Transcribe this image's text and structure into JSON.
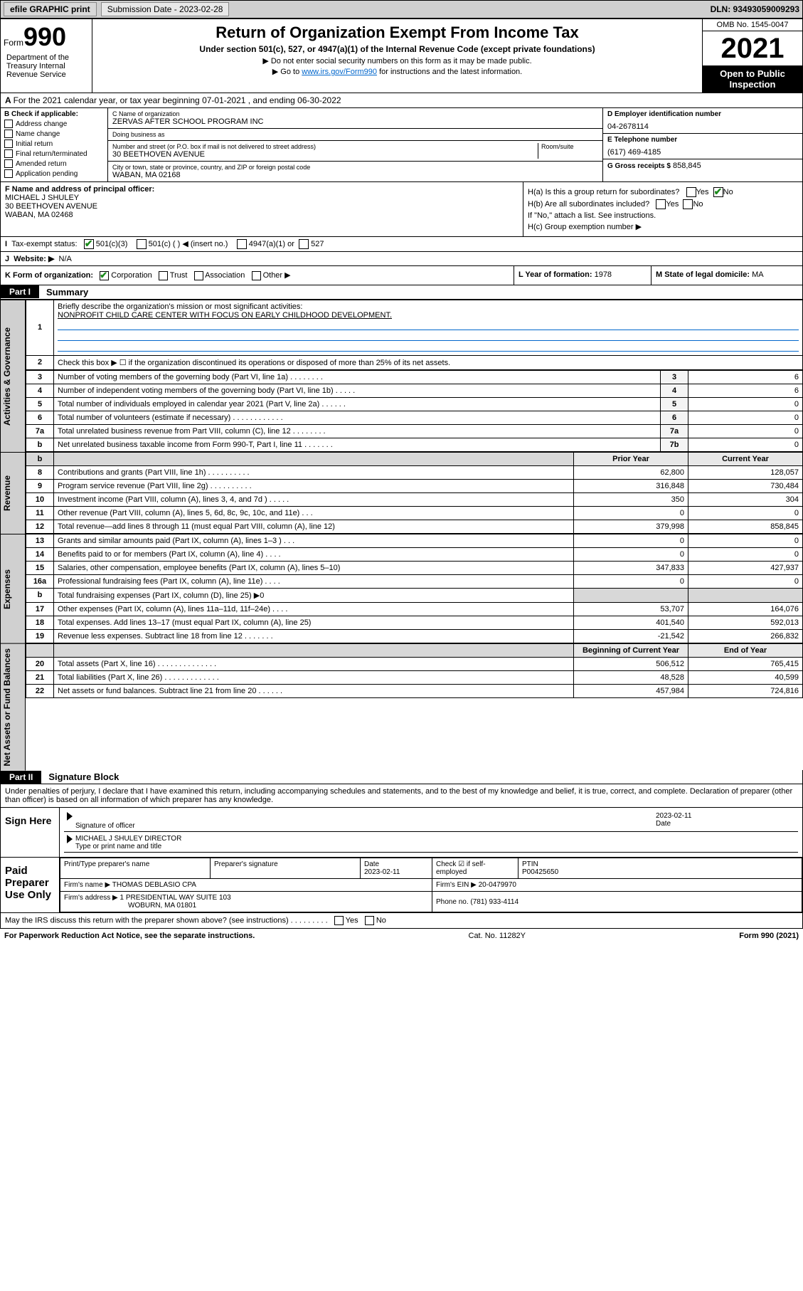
{
  "top": {
    "efile": "efile GRAPHIC print",
    "sub_label": "Submission Date - 2023-02-28",
    "dln": "DLN: 93493059009293"
  },
  "header": {
    "form_small": "Form",
    "form_big": "990",
    "title": "Return of Organization Exempt From Income Tax",
    "sub1": "Under section 501(c), 527, or 4947(a)(1) of the Internal Revenue Code (except private foundations)",
    "sub2": "▶ Do not enter social security numbers on this form as it may be made public.",
    "sub3_a": "▶ Go to ",
    "sub3_link": "www.irs.gov/Form990",
    "sub3_b": " for instructions and the latest information.",
    "omb": "OMB No. 1545-0047",
    "year": "2021",
    "open": "Open to Public Inspection",
    "dept": "Department of the Treasury Internal Revenue Service"
  },
  "lineA": "For the 2021 calendar year, or tax year beginning 07-01-2021    , and ending 06-30-2022",
  "colB": {
    "title": "B Check if applicable:",
    "addr": "Address change",
    "name": "Name change",
    "init": "Initial return",
    "term": "Final return/terminated",
    "amend": "Amended return",
    "app": "Application pending"
  },
  "colC": {
    "name_label": "C Name of organization",
    "name": "ZERVAS AFTER SCHOOL PROGRAM INC",
    "dba_label": "Doing business as",
    "dba": "",
    "street_label": "Number and street (or P.O. box if mail is not delivered to street address)",
    "room": "Room/suite",
    "street": "30 BEETHOVEN AVENUE",
    "city_label": "City or town, state or province, country, and ZIP or foreign postal code",
    "city": "WABAN, MA  02168"
  },
  "colD": {
    "ein_label": "D Employer identification number",
    "ein": "04-2678114",
    "phone_label": "E Telephone number",
    "phone": "(617) 469-4185",
    "gross_label": "G Gross receipts $",
    "gross": "858,845"
  },
  "rowF": {
    "label": "F  Name and address of principal officer:",
    "name": "MICHAEL J SHULEY",
    "street": "30 BEETHOVEN AVENUE",
    "city": "WABAN, MA  02468"
  },
  "rowH": {
    "ha": "H(a)  Is this a group return for subordinates?",
    "hb": "H(b)  Are all subordinates included?",
    "hb2": "If \"No,\" attach a list. See instructions.",
    "hc": "H(c)  Group exemption number ▶",
    "yes": "Yes",
    "no": "No"
  },
  "rowI": {
    "label": "Tax-exempt status:",
    "o1": "501(c)(3)",
    "o2": "501(c) (   ) ◀ (insert no.)",
    "o3": "4947(a)(1) or",
    "o4": "527"
  },
  "rowJ": {
    "label": "Website: ▶",
    "val": "N/A"
  },
  "rowK": {
    "label": "K Form of organization:",
    "corp": "Corporation",
    "trust": "Trust",
    "assoc": "Association",
    "other": "Other ▶",
    "year_label": "L Year of formation:",
    "year": "1978",
    "state_label": "M State of legal domicile:",
    "state": "MA"
  },
  "part1": {
    "hdr": "Part I",
    "title": "Summary",
    "l1_label": "Briefly describe the organization's mission or most significant activities:",
    "l1_val": "NONPROFIT CHILD CARE CENTER WITH FOCUS ON EARLY CHILDHOOD DEVELOPMENT.",
    "l2": "Check this box ▶ ☐  if the organization discontinued its operations or disposed of more than 25% of its net assets.",
    "rows37": [
      {
        "n": "3",
        "d": "Number of voting members of the governing body (Part VI, line 1a)   .    .    .    .    .    .    .    .",
        "ln": "3",
        "v": "6"
      },
      {
        "n": "4",
        "d": "Number of independent voting members of the governing body (Part VI, line 1b)   .    .    .    .    .",
        "ln": "4",
        "v": "6"
      },
      {
        "n": "5",
        "d": "Total number of individuals employed in calendar year 2021 (Part V, line 2a)   .    .    .    .    .    .",
        "ln": "5",
        "v": "0"
      },
      {
        "n": "6",
        "d": "Total number of volunteers (estimate if necessary)   .    .    .    .    .    .    .    .    .    .    .    .",
        "ln": "6",
        "v": "0"
      },
      {
        "n": "7a",
        "d": "Total unrelated business revenue from Part VIII, column (C), line 12   .    .    .    .    .    .    .    .",
        "ln": "7a",
        "v": "0"
      },
      {
        "n": "b",
        "d": "Net unrelated business taxable income from Form 990-T, Part I, line 11   .    .    .    .    .    .    .",
        "ln": "7b",
        "v": "0"
      }
    ],
    "hdr_prior": "Prior Year",
    "hdr_curr": "Current Year",
    "revenue": [
      {
        "n": "8",
        "d": "Contributions and grants (Part VIII, line 1h)   .    .    .    .    .    .    .    .    .    .",
        "p": "62,800",
        "c": "128,057"
      },
      {
        "n": "9",
        "d": "Program service revenue (Part VIII, line 2g)   .    .    .    .    .    .    .    .    .    .",
        "p": "316,848",
        "c": "730,484"
      },
      {
        "n": "10",
        "d": "Investment income (Part VIII, column (A), lines 3, 4, and 7d )   .    .    .    .    .",
        "p": "350",
        "c": "304"
      },
      {
        "n": "11",
        "d": "Other revenue (Part VIII, column (A), lines 5, 6d, 8c, 9c, 10c, and 11e)   .    .    .",
        "p": "0",
        "c": "0"
      },
      {
        "n": "12",
        "d": "Total revenue—add lines 8 through 11 (must equal Part VIII, column (A), line 12)",
        "p": "379,998",
        "c": "858,845"
      }
    ],
    "expenses": [
      {
        "n": "13",
        "d": "Grants and similar amounts paid (Part IX, column (A), lines 1–3 )   .    .    .",
        "p": "0",
        "c": "0"
      },
      {
        "n": "14",
        "d": "Benefits paid to or for members (Part IX, column (A), line 4)   .    .    .    .",
        "p": "0",
        "c": "0"
      },
      {
        "n": "15",
        "d": "Salaries, other compensation, employee benefits (Part IX, column (A), lines 5–10)",
        "p": "347,833",
        "c": "427,937"
      },
      {
        "n": "16a",
        "d": "Professional fundraising fees (Part IX, column (A), line 11e)   .    .    .    .",
        "p": "0",
        "c": "0"
      },
      {
        "n": "b",
        "d": "Total fundraising expenses (Part IX, column (D), line 25) ▶0",
        "p": "",
        "c": "",
        "shade": true
      },
      {
        "n": "17",
        "d": "Other expenses (Part IX, column (A), lines 11a–11d, 11f–24e)   .    .    .    .",
        "p": "53,707",
        "c": "164,076"
      },
      {
        "n": "18",
        "d": "Total expenses. Add lines 13–17 (must equal Part IX, column (A), line 25)",
        "p": "401,540",
        "c": "592,013"
      },
      {
        "n": "19",
        "d": "Revenue less expenses. Subtract line 18 from line 12   .    .    .    .    .    .    .",
        "p": "-21,542",
        "c": "266,832"
      }
    ],
    "hdr_begin": "Beginning of Current Year",
    "hdr_end": "End of Year",
    "netassets": [
      {
        "n": "20",
        "d": "Total assets (Part X, line 16)   .    .    .    .    .    .    .    .    .    .    .    .    .    .",
        "p": "506,512",
        "c": "765,415"
      },
      {
        "n": "21",
        "d": "Total liabilities (Part X, line 26)   .    .    .    .    .    .    .    .    .    .    .    .    .",
        "p": "48,528",
        "c": "40,599"
      },
      {
        "n": "22",
        "d": "Net assets or fund balances. Subtract line 21 from line 20   .    .    .    .    .    .",
        "p": "457,984",
        "c": "724,816"
      }
    ]
  },
  "vlabels": {
    "act": "Activities & Governance",
    "rev": "Revenue",
    "exp": "Expenses",
    "net": "Net Assets or Fund Balances"
  },
  "part2": {
    "hdr": "Part II",
    "title": "Signature Block",
    "decl": "Under penalties of perjury, I declare that I have examined this return, including accompanying schedules and statements, and to the best of my knowledge and belief, it is true, correct, and complete. Declaration of preparer (other than officer) is based on all information of which preparer has any knowledge.",
    "sign_here": "Sign Here",
    "sig_officer": "Signature of officer",
    "date_label": "Date",
    "sig_date": "2023-02-11",
    "officer_name": "MICHAEL J SHULEY  DIRECTOR",
    "type_name": "Type or print name and title",
    "paid": "Paid Preparer Use Only",
    "prep_name_label": "Print/Type preparer's name",
    "prep_sig_label": "Preparer's signature",
    "prep_date_label": "Date",
    "prep_date": "2023-02-11",
    "check_if": "Check ☑ if self-employed",
    "ptin_label": "PTIN",
    "ptin": "P00425650",
    "firm_name_label": "Firm's name    ▶",
    "firm_name": "THOMAS DEBLASIO CPA",
    "firm_ein_label": "Firm's EIN ▶",
    "firm_ein": "20-0479970",
    "firm_addr_label": "Firm's address ▶",
    "firm_addr": "1 PRESIDENTIAL WAY SUITE 103",
    "firm_city": "WOBURN, MA  01801",
    "phone_label": "Phone no.",
    "phone": "(781) 933-4114",
    "discuss": "May the IRS discuss this return with the preparer shown above? (see instructions)   .    .    .    .    .    .    .    .    .",
    "yes": "Yes",
    "no": "No"
  },
  "footer": {
    "left": "For Paperwork Reduction Act Notice, see the separate instructions.",
    "mid": "Cat. No. 11282Y",
    "right": "Form 990 (2021)"
  }
}
